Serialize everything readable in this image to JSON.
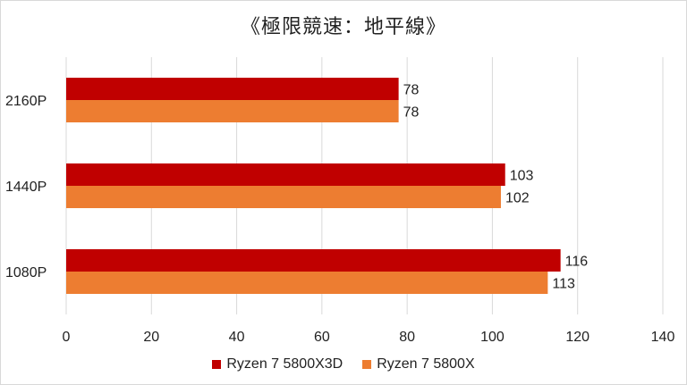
{
  "chart_data": {
    "type": "bar",
    "orientation": "horizontal",
    "title": "《極限競速：地平線》",
    "categories": [
      "2160P",
      "1440P",
      "1080P"
    ],
    "series": [
      {
        "name": "Ryzen 7 5800X3D",
        "color": "#c00000",
        "values": [
          78,
          103,
          116
        ]
      },
      {
        "name": "Ryzen 7 5800X",
        "color": "#ed7d31",
        "values": [
          78,
          102,
          113
        ]
      }
    ],
    "xlim": [
      0,
      140
    ],
    "xticks": [
      0,
      20,
      40,
      60,
      80,
      100,
      120,
      140
    ],
    "grid": true,
    "legend_position": "bottom"
  }
}
